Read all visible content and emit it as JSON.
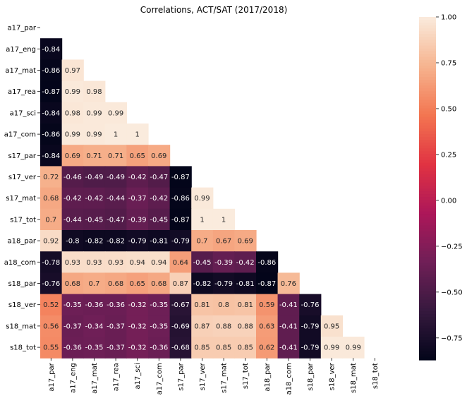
{
  "chart_data": {
    "type": "heatmap",
    "title": "Correlations, ACT/SAT (2017/2018)",
    "xlabel": "",
    "ylabel": "",
    "mask": "upper-triangle-including-diagonal",
    "x_labels": [
      "a17_par",
      "a17_eng",
      "a17_mat",
      "a17_rea",
      "a17_sci",
      "a17_com",
      "s17_par",
      "s17_ver",
      "s17_mat",
      "s17_tot",
      "a18_par",
      "a18_com",
      "s18_par",
      "s18_ver",
      "s18_mat",
      "s18_tot"
    ],
    "y_labels": [
      "a17_par",
      "a17_eng",
      "a17_mat",
      "a17_rea",
      "a17_sci",
      "a17_com",
      "s17_par",
      "s17_ver",
      "s17_mat",
      "s17_tot",
      "a18_par",
      "a18_com",
      "s18_par",
      "s18_ver",
      "s18_mat",
      "s18_tot"
    ],
    "values": [
      [],
      [
        -0.84
      ],
      [
        -0.86,
        0.97
      ],
      [
        -0.87,
        0.99,
        0.98
      ],
      [
        -0.84,
        0.98,
        0.99,
        0.99
      ],
      [
        -0.86,
        0.99,
        0.99,
        1,
        1
      ],
      [
        -0.84,
        0.69,
        0.71,
        0.71,
        0.65,
        0.69
      ],
      [
        0.72,
        -0.46,
        -0.49,
        -0.49,
        -0.42,
        -0.47,
        -0.87
      ],
      [
        0.68,
        -0.42,
        -0.42,
        -0.44,
        -0.37,
        -0.42,
        -0.86,
        0.99
      ],
      [
        0.7,
        -0.44,
        -0.45,
        -0.47,
        -0.39,
        -0.45,
        -0.87,
        1,
        1
      ],
      [
        0.92,
        -0.8,
        -0.82,
        -0.82,
        -0.79,
        -0.81,
        -0.79,
        0.7,
        0.67,
        0.69
      ],
      [
        -0.78,
        0.93,
        0.93,
        0.93,
        0.94,
        0.94,
        0.64,
        -0.45,
        -0.39,
        -0.42,
        -0.86
      ],
      [
        -0.76,
        0.68,
        0.7,
        0.68,
        0.65,
        0.68,
        0.87,
        -0.82,
        -0.79,
        -0.81,
        -0.87,
        0.76
      ],
      [
        0.52,
        -0.35,
        -0.36,
        -0.36,
        -0.32,
        -0.35,
        -0.67,
        0.81,
        0.8,
        0.81,
        0.59,
        -0.41,
        -0.76
      ],
      [
        0.56,
        -0.37,
        -0.34,
        -0.37,
        -0.32,
        -0.35,
        -0.69,
        0.87,
        0.88,
        0.88,
        0.63,
        -0.41,
        -0.79,
        0.95
      ],
      [
        0.55,
        -0.36,
        -0.35,
        -0.37,
        -0.32,
        -0.36,
        -0.68,
        0.85,
        0.85,
        0.85,
        0.62,
        -0.41,
        -0.79,
        0.99,
        0.99
      ]
    ],
    "colorbar": {
      "min": -0.87,
      "max": 1.0,
      "ticks": [
        1.0,
        0.75,
        0.5,
        0.25,
        0.0,
        -0.25,
        -0.5,
        -0.75
      ],
      "tick_labels": [
        "1.00",
        "0.75",
        "0.50",
        "0.25",
        "0.00",
        "−0.25",
        "−0.50",
        "−0.75"
      ],
      "colormap": "rocket"
    },
    "colormap_stops": [
      "#03051a",
      "#36193e",
      "#701f57",
      "#ad1759",
      "#e13342",
      "#f37651",
      "#f6b48f",
      "#faebdd"
    ],
    "grid": false,
    "legend": "none"
  }
}
